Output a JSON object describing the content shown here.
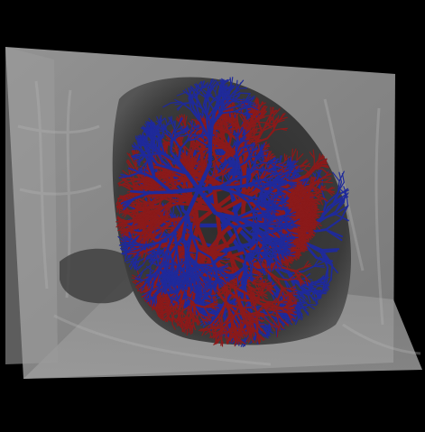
{
  "image": {
    "description_kind": "3d-medical-render",
    "background_color": "#000000",
    "plane_color": "#8a8a8a",
    "lung_cavity_color": "#3a3a3a",
    "structures": [
      {
        "name": "arteries",
        "color": "#8b1a1a"
      },
      {
        "name": "veins",
        "color": "#1f2a9a"
      }
    ]
  }
}
